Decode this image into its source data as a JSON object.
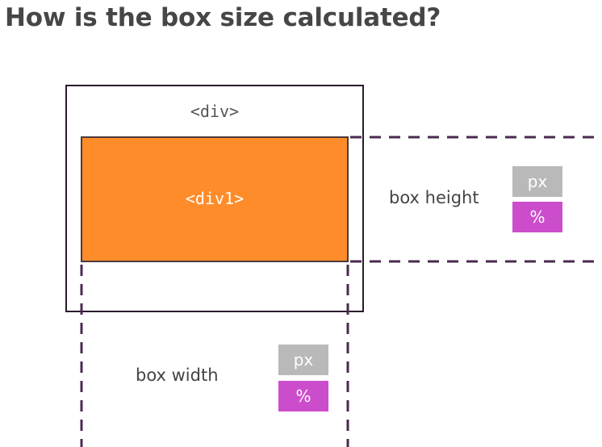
{
  "title": "How is the box size calculated?",
  "outer_element": {
    "label": "<div>"
  },
  "inner_element": {
    "label": "<div1>",
    "fill_color": "#ff8c2a"
  },
  "height_dimension": {
    "label": "box height",
    "units": [
      {
        "label": "px",
        "color": "#b9b9b9"
      },
      {
        "label": "%",
        "color": "#cc4dcc"
      }
    ]
  },
  "width_dimension": {
    "label": "box width",
    "units": [
      {
        "label": "px",
        "color": "#b9b9b9"
      },
      {
        "label": "%",
        "color": "#cc4dcc"
      }
    ]
  },
  "guide_line_color": "#4a2a4f"
}
